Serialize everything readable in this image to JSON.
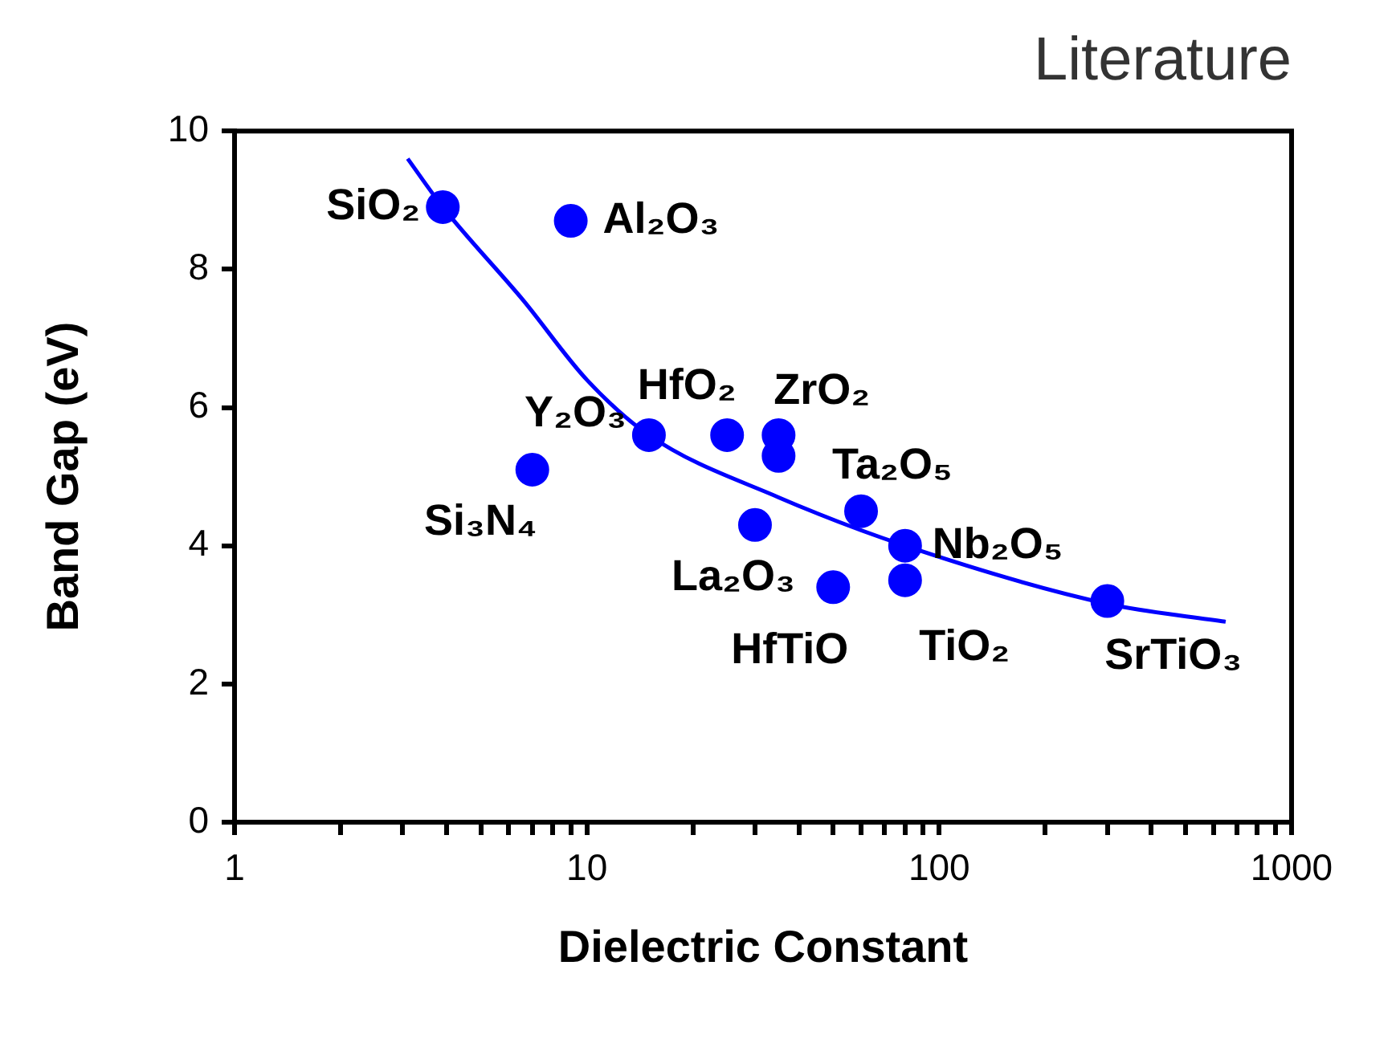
{
  "chart_data": {
    "type": "scatter",
    "title": "Literature",
    "xlabel": "Dielectric Constant",
    "ylabel": "Band Gap (eV)",
    "log": "x",
    "marker": "circle",
    "xlim": [
      1,
      1000
    ],
    "xticks": [
      1,
      {
        "value": 2,
        "label": null
      },
      {
        "value": 3,
        "label": null
      },
      {
        "value": 4,
        "label": null
      },
      {
        "value": 5,
        "label": null
      },
      {
        "value": 6,
        "label": null
      },
      {
        "value": 7,
        "label": null
      },
      {
        "value": 8,
        "label": null
      },
      {
        "value": 9,
        "label": null
      },
      10,
      {
        "value": 20,
        "label": null
      },
      {
        "value": 30,
        "label": null
      },
      {
        "value": 40,
        "label": null
      },
      {
        "value": 50,
        "label": null
      },
      {
        "value": 60,
        "label": null
      },
      {
        "value": 70,
        "label": null
      },
      {
        "value": 80,
        "label": null
      },
      {
        "value": 90,
        "label": null
      },
      100,
      {
        "value": 200,
        "label": null
      },
      {
        "value": 300,
        "label": null
      },
      {
        "value": 400,
        "label": null
      },
      {
        "value": 500,
        "label": null
      },
      {
        "value": 600,
        "label": null
      },
      {
        "value": 700,
        "label": null
      },
      {
        "value": 800,
        "label": null
      },
      {
        "value": 900,
        "label": null
      },
      1000
    ],
    "ylim": [
      0,
      10
    ],
    "yticks": [
      0,
      2,
      4,
      6,
      8,
      10
    ],
    "series": [
      {
        "color": "#0000ff",
        "x": [
          3.9,
          9,
          15,
          7,
          25,
          35,
          35,
          30,
          50,
          60,
          80,
          80,
          300
        ],
        "values": [
          8.9,
          8.7,
          5.6,
          5.1,
          5.6,
          5.6,
          5.3,
          4.3,
          3.4,
          4.5,
          4.0,
          3.5,
          3.2
        ],
        "value_labels": [
          "SiO₂",
          "Al₂O₃",
          "Y₂O₃",
          "Si₃N₄",
          "HfO₂",
          "ZrO₂",
          null,
          "La₂O₃",
          "HfTiO",
          "Ta₂O₅",
          "Nb₂O₅",
          "TiO₂",
          "SrTiO₃"
        ]
      },
      {
        "type": "line",
        "color": "#0000ff",
        "marker": "none",
        "x": [
          3.1,
          3.9,
          6.6,
          10,
          15,
          35,
          80,
          300,
          650
        ],
        "values": [
          9.6,
          8.9,
          7.55,
          6.4,
          5.6,
          4.7,
          4.0,
          3.16,
          2.9
        ]
      }
    ]
  }
}
